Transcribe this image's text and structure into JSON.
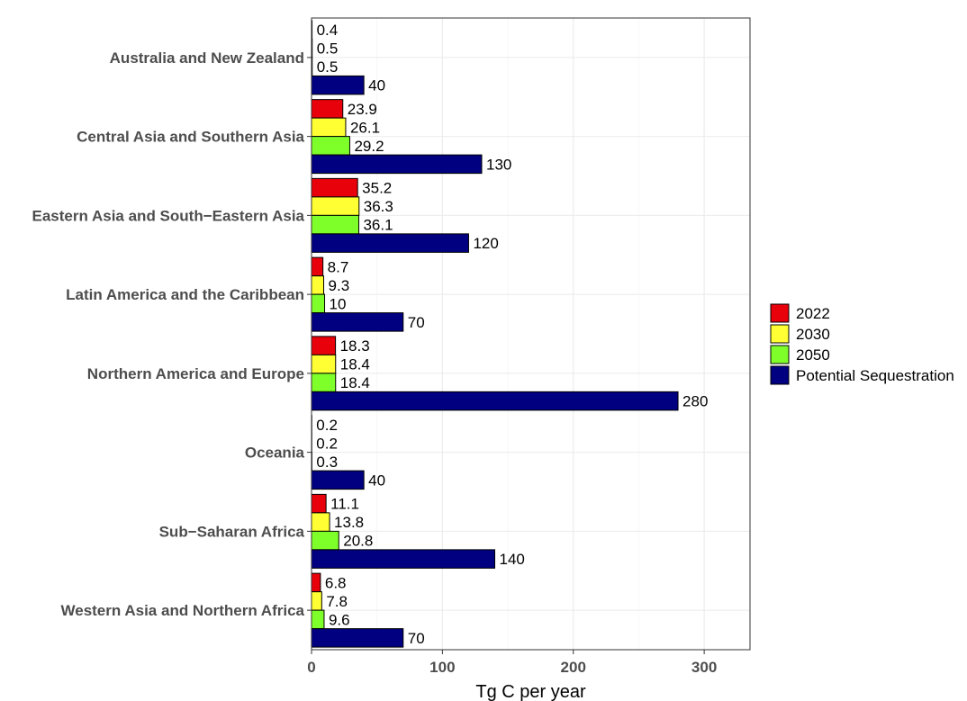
{
  "chart_data": {
    "type": "bar",
    "orientation": "horizontal",
    "categories": [
      "Australia and New Zealand",
      "Central Asia and Southern Asia",
      "Eastern Asia and South−Eastern Asia",
      "Latin America and the Caribbean",
      "Northern America and Europe",
      "Oceania",
      "Sub−Saharan Africa",
      "Western Asia and Northern Africa"
    ],
    "series": [
      {
        "name": "2022",
        "color": "#e8000b",
        "values": [
          0.4,
          23.9,
          35.2,
          8.7,
          18.3,
          0.2,
          11.1,
          6.8
        ]
      },
      {
        "name": "2030",
        "color": "#ffff33",
        "values": [
          0.5,
          26.1,
          36.3,
          9.3,
          18.4,
          0.2,
          13.8,
          7.8
        ]
      },
      {
        "name": "2050",
        "color": "#7fff2a",
        "values": [
          0.5,
          29.2,
          36.1,
          10,
          18.4,
          0.3,
          20.8,
          9.6
        ]
      },
      {
        "name": "Potential Sequestration",
        "color": "#000080",
        "values": [
          40,
          130,
          120,
          70,
          280,
          40,
          140,
          70
        ]
      }
    ],
    "xlabel": "Tg C per year",
    "ylabel": "",
    "xlim": [
      0,
      335
    ],
    "xticks": [
      0,
      100,
      200,
      300
    ],
    "grid": true,
    "legend_position": "right"
  }
}
